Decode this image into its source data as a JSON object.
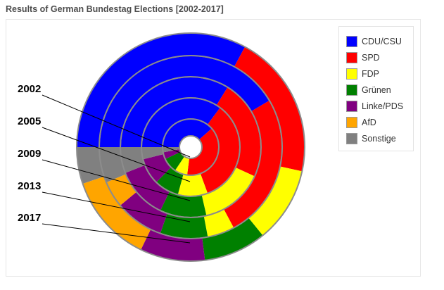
{
  "title": "Results of German Bundestag Elections [2002-2017]",
  "chart_data": {
    "type": "pie",
    "subtype": "nested-donut",
    "title": "Results of German Bundestag Elections [2002-2017]",
    "series": [
      {
        "name": "2002",
        "values": [
          38.5,
          38.5,
          7.4,
          8.6,
          4.0,
          0,
          3.0
        ]
      },
      {
        "name": "2005",
        "values": [
          35.2,
          34.2,
          9.8,
          8.1,
          8.7,
          0,
          4.0
        ]
      },
      {
        "name": "2009",
        "values": [
          33.8,
          23.0,
          14.6,
          10.7,
          11.9,
          0,
          6.0
        ]
      },
      {
        "name": "2013",
        "values": [
          41.5,
          25.7,
          4.8,
          8.4,
          8.6,
          4.7,
          6.3
        ]
      },
      {
        "name": "2017",
        "values": [
          32.9,
          20.5,
          10.7,
          8.9,
          9.2,
          12.6,
          5.2
        ]
      }
    ],
    "categories": [
      "CDU/CSU",
      "SPD",
      "FDP",
      "Grünen",
      "Linke/PDS",
      "AfD",
      "Sonstige"
    ],
    "colors": [
      "#0000ff",
      "#ff0000",
      "#ffff00",
      "#008000",
      "#800080",
      "#ffa500",
      "#808080"
    ],
    "legend_position": "top-right"
  }
}
